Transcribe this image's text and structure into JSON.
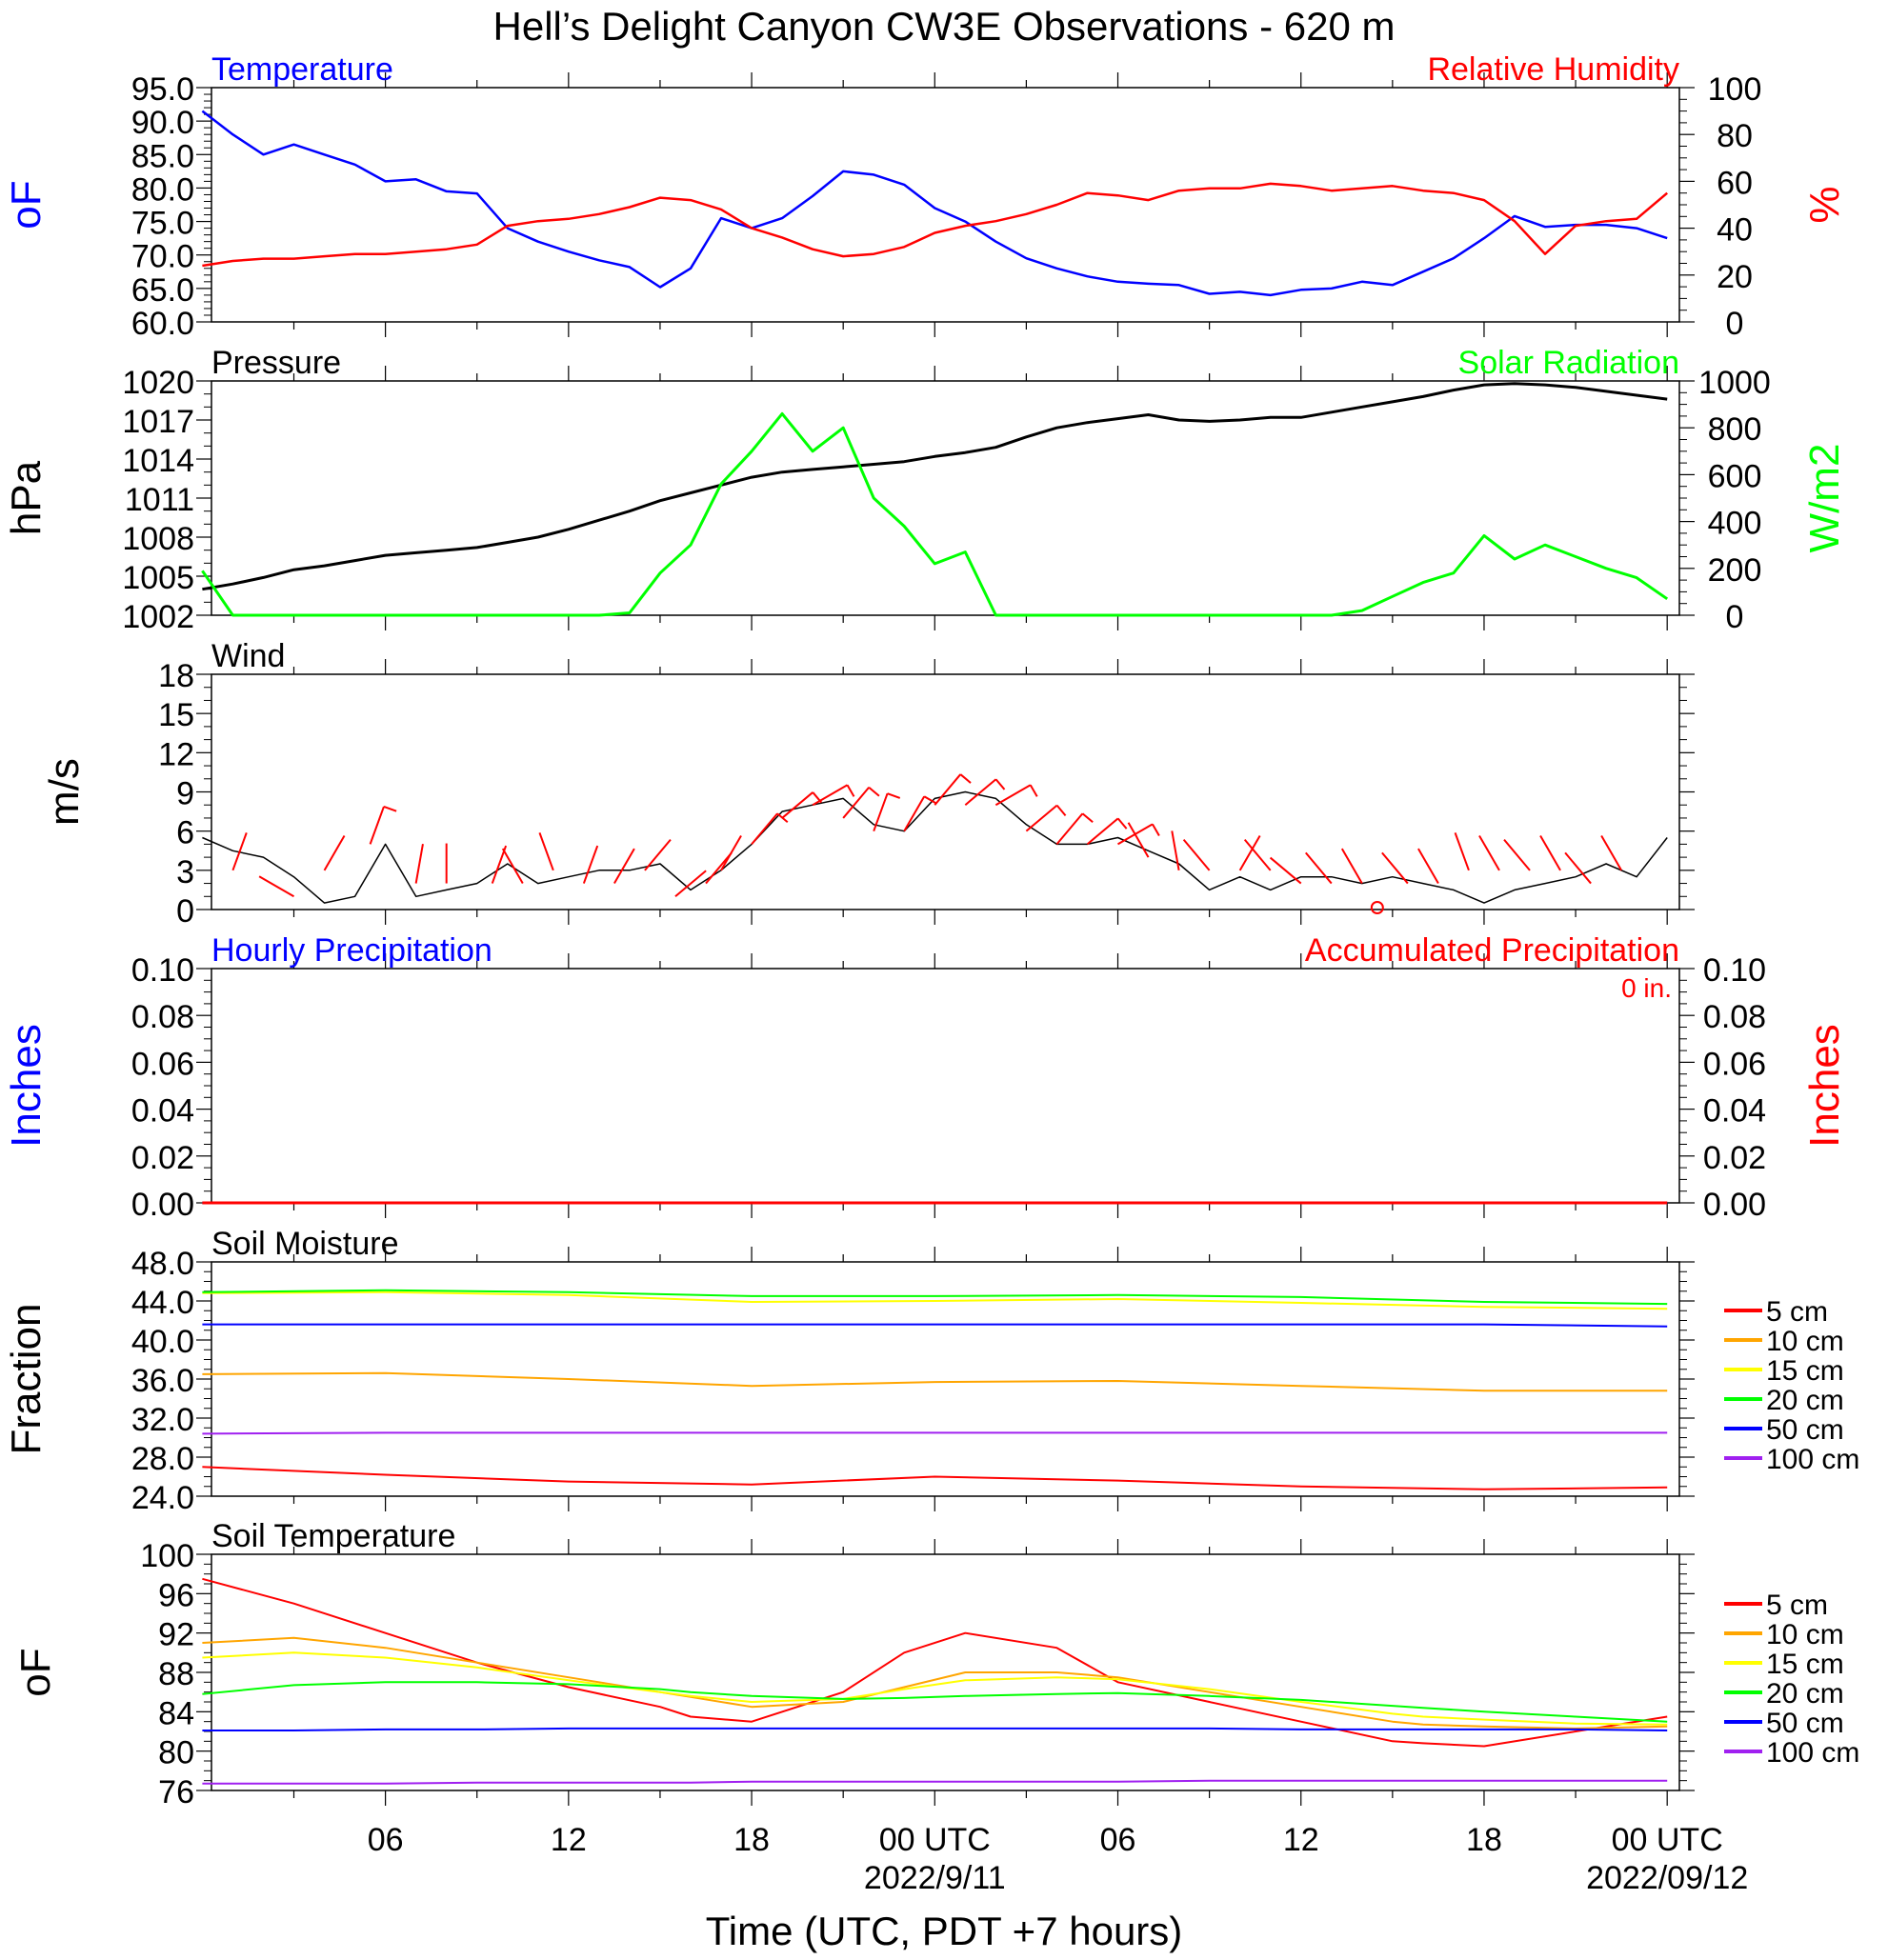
{
  "title": "Hell’s Delight Canyon CW3E Observations - 620 m",
  "x_axis": {
    "title": "Time (UTC, PDT +7 hours)",
    "tick_labels": [
      "06",
      "12",
      "18",
      "00 UTC",
      "06",
      "12",
      "18",
      "00 UTC"
    ],
    "date_labels": [
      "2022/9/11",
      "2022/09/12"
    ]
  },
  "colors": {
    "blue": "#0000ff",
    "red": "#ff0000",
    "green": "#00ff00",
    "black": "#000000",
    "orange": "#ffa500",
    "yellow": "#ffff00",
    "purple": "#a020f0"
  },
  "legend_labels": [
    "5 cm",
    "10 cm",
    "15 cm",
    "20 cm",
    "50 cm",
    "100 cm"
  ],
  "chart_data": [
    {
      "panel": "temperature_rh",
      "type": "line",
      "title_left": "Temperature",
      "title_right": "Relative Humidity",
      "ylabel_left": "oF",
      "ylabel_right": "%",
      "ylim_left": [
        60,
        95
      ],
      "ylim_right": [
        0,
        100
      ],
      "left_ticks": [
        "95.0",
        "90.0",
        "85.0",
        "80.0",
        "75.0",
        "70.0",
        "65.0",
        "60.0"
      ],
      "right_ticks": [
        "100",
        "80",
        "60",
        "40",
        "20",
        "0"
      ],
      "x_hours": [
        0,
        1,
        2,
        3,
        4,
        5,
        6,
        7,
        8,
        9,
        10,
        11,
        12,
        13,
        14,
        15,
        16,
        17,
        18,
        19,
        20,
        21,
        22,
        23,
        24,
        25,
        26,
        27,
        28,
        29,
        30,
        31,
        32,
        33,
        34,
        35,
        36,
        37,
        38,
        39,
        40,
        41,
        42,
        43,
        44,
        45,
        46,
        47,
        48
      ],
      "series": [
        {
          "name": "Temperature",
          "axis": "left",
          "color": "blue",
          "values": [
            91.5,
            88,
            85,
            86.5,
            85,
            83.5,
            81,
            81.3,
            79.5,
            79.2,
            74,
            72,
            70.5,
            69.2,
            68.2,
            65.2,
            68,
            75.5,
            74,
            75.5,
            78.8,
            82.5,
            82,
            80.5,
            77,
            75,
            72,
            69.5,
            68,
            66.8,
            66,
            65.7,
            65.5,
            64.2,
            64.5,
            64,
            64.8,
            65,
            66,
            65.5,
            67.5,
            69.5,
            72.5,
            75.8,
            74.2,
            74.5,
            74.5,
            74,
            72.5
          ]
        },
        {
          "name": "Relative Humidity",
          "axis": "right",
          "color": "red",
          "values": [
            24,
            26,
            27,
            27,
            28,
            29,
            29,
            30,
            31,
            33,
            41,
            43,
            44,
            46,
            49,
            53,
            52,
            48,
            40,
            36,
            31,
            28,
            29,
            32,
            38,
            41,
            43,
            46,
            50,
            55,
            54,
            52,
            56,
            57,
            57,
            59,
            58,
            56,
            57,
            58,
            56,
            55,
            52,
            43,
            29,
            41,
            43,
            44,
            55
          ]
        }
      ]
    },
    {
      "panel": "pressure_solar",
      "type": "line",
      "title_left": "Pressure",
      "title_right": "Solar Radiation",
      "ylabel_left": "hPa",
      "ylabel_right": "W/m2",
      "ylim_left": [
        1002,
        1020
      ],
      "ylim_right": [
        0,
        1000
      ],
      "left_ticks": [
        "1020",
        "1017",
        "1014",
        "1011",
        "1008",
        "1005",
        "1002"
      ],
      "right_ticks": [
        "1000",
        "800",
        "600",
        "400",
        "200",
        "0"
      ],
      "x_hours": [
        0,
        1,
        2,
        3,
        4,
        5,
        6,
        7,
        8,
        9,
        10,
        11,
        12,
        13,
        14,
        15,
        16,
        17,
        18,
        19,
        20,
        21,
        22,
        23,
        24,
        25,
        26,
        27,
        28,
        29,
        30,
        31,
        32,
        33,
        34,
        35,
        36,
        37,
        38,
        39,
        40,
        41,
        42,
        43,
        44,
        45,
        46,
        47,
        48
      ],
      "series": [
        {
          "name": "Pressure",
          "axis": "left",
          "color": "black",
          "values": [
            1004.0,
            1004.4,
            1004.9,
            1005.5,
            1005.8,
            1006.2,
            1006.6,
            1006.8,
            1007.0,
            1007.2,
            1007.6,
            1008.0,
            1008.6,
            1009.3,
            1010.0,
            1010.8,
            1011.4,
            1012.0,
            1012.6,
            1013.0,
            1013.2,
            1013.4,
            1013.6,
            1013.8,
            1014.2,
            1014.5,
            1014.9,
            1015.7,
            1016.4,
            1016.8,
            1017.1,
            1017.4,
            1017.0,
            1016.9,
            1017.0,
            1017.2,
            1017.2,
            1017.6,
            1018.0,
            1018.4,
            1018.8,
            1019.3,
            1019.7,
            1019.8,
            1019.7,
            1019.5,
            1019.2,
            1018.9,
            1018.6
          ]
        },
        {
          "name": "Solar Radiation",
          "axis": "right",
          "color": "green",
          "values": [
            190,
            0,
            0,
            0,
            0,
            0,
            0,
            0,
            0,
            0,
            0,
            0,
            0,
            0,
            10,
            180,
            300,
            560,
            700,
            860,
            700,
            800,
            500,
            380,
            220,
            270,
            0,
            0,
            0,
            0,
            0,
            0,
            0,
            0,
            0,
            0,
            0,
            0,
            20,
            80,
            140,
            180,
            340,
            240,
            300,
            250,
            200,
            160,
            70
          ]
        }
      ]
    },
    {
      "panel": "wind",
      "type": "line",
      "title_left": "Wind",
      "ylabel_left": "m/s",
      "ylim_left": [
        0,
        18
      ],
      "left_ticks": [
        "18",
        "15",
        "12",
        "9",
        "6",
        "3",
        "0"
      ],
      "x_hours": [
        0,
        1,
        2,
        3,
        4,
        5,
        6,
        7,
        8,
        9,
        10,
        11,
        12,
        13,
        14,
        15,
        16,
        17,
        18,
        19,
        20,
        21,
        22,
        23,
        24,
        25,
        26,
        27,
        28,
        29,
        30,
        31,
        32,
        33,
        34,
        35,
        36,
        37,
        38,
        39,
        40,
        41,
        42,
        43,
        44,
        45,
        46,
        47,
        48
      ],
      "series": [
        {
          "name": "Wind speed",
          "axis": "left",
          "color": "black",
          "values": [
            5.5,
            4.5,
            4.0,
            2.5,
            0.5,
            1.0,
            5.0,
            1.0,
            1.5,
            2.0,
            3.5,
            2.0,
            2.5,
            3.0,
            3.0,
            3.5,
            1.5,
            3.0,
            5.0,
            7.5,
            8.0,
            8.5,
            6.5,
            6.0,
            8.5,
            9.0,
            8.5,
            6.5,
            5.0,
            5.0,
            5.5,
            4.5,
            3.5,
            1.5,
            2.5,
            1.5,
            2.5,
            2.5,
            2.0,
            2.5,
            2.0,
            1.5,
            0.5,
            1.5,
            2.0,
            2.5,
            3.5,
            2.5,
            5.5
          ]
        }
      ],
      "barbs": {
        "color": "red",
        "x_hours": [
          1,
          3,
          4,
          5.5,
          7,
          8,
          9.5,
          10.5,
          11.5,
          12.5,
          13.5,
          14.5,
          15.5,
          16.5,
          17,
          18,
          19,
          20,
          21,
          22,
          23,
          24,
          25,
          26,
          27,
          28,
          29,
          30,
          31,
          32,
          33,
          34,
          35,
          36,
          37,
          38,
          38.5,
          39.5,
          40.5,
          41.5,
          42.5,
          43.5,
          44.5,
          45.5,
          46.5
        ],
        "speeds": [
          3,
          1,
          3,
          5,
          2,
          2,
          2,
          2,
          3,
          2,
          2,
          3,
          1,
          2,
          3,
          5,
          7,
          8,
          7,
          6,
          6,
          8,
          8,
          8,
          6,
          5,
          5,
          5,
          4,
          3,
          3,
          3,
          3,
          2,
          2,
          2,
          0,
          2,
          2,
          3,
          3,
          3,
          3,
          2,
          3
        ],
        "angles": [
          20,
          300,
          30,
          20,
          10,
          0,
          20,
          330,
          340,
          20,
          30,
          40,
          50,
          40,
          30,
          40,
          50,
          60,
          40,
          20,
          30,
          40,
          50,
          60,
          50,
          40,
          50,
          60,
          330,
          350,
          320,
          30,
          320,
          310,
          320,
          330,
          0,
          320,
          330,
          340,
          330,
          320,
          330,
          320,
          330
        ]
      }
    },
    {
      "panel": "precipitation",
      "type": "line",
      "title_left": "Hourly Precipitation",
      "title_right": "Accumulated Precipitation",
      "annotation": "0 in.",
      "ylabel_left": "Inches",
      "ylabel_right": "Inches",
      "ylim_left": [
        0,
        0.1
      ],
      "ylim_right": [
        0,
        0.1
      ],
      "left_ticks": [
        "0.10",
        "0.08",
        "0.06",
        "0.04",
        "0.02",
        "0.00"
      ],
      "right_ticks": [
        "0.10",
        "0.08",
        "0.06",
        "0.04",
        "0.02",
        "0.00"
      ],
      "x_hours": [
        0,
        48
      ],
      "series": [
        {
          "name": "Hourly Precipitation",
          "axis": "left",
          "color": "blue",
          "values": [
            0,
            0
          ]
        },
        {
          "name": "Accumulated Precipitation",
          "axis": "right",
          "color": "red",
          "values": [
            0,
            0
          ]
        }
      ]
    },
    {
      "panel": "soil_moisture",
      "type": "line",
      "title_left": "Soil Moisture",
      "ylabel_left": "Fraction",
      "ylim_left": [
        24,
        48
      ],
      "left_ticks": [
        "48.0",
        "44.0",
        "40.0",
        "36.0",
        "32.0",
        "28.0",
        "24.0"
      ],
      "x_hours": [
        0,
        6,
        12,
        18,
        24,
        30,
        36,
        42,
        48
      ],
      "series": [
        {
          "name": "5 cm",
          "color": "red",
          "values": [
            27.0,
            26.2,
            25.5,
            25.2,
            26.0,
            25.6,
            25.0,
            24.7,
            24.9
          ]
        },
        {
          "name": "10 cm",
          "color": "orange",
          "values": [
            36.5,
            36.6,
            36.0,
            35.3,
            35.7,
            35.8,
            35.3,
            34.8,
            34.8
          ]
        },
        {
          "name": "15 cm",
          "color": "yellow",
          "values": [
            44.8,
            44.9,
            44.6,
            43.9,
            44.0,
            44.2,
            43.8,
            43.4,
            43.2
          ]
        },
        {
          "name": "20 cm",
          "color": "green",
          "values": [
            44.9,
            45.1,
            44.9,
            44.5,
            44.5,
            44.6,
            44.4,
            43.9,
            43.7
          ]
        },
        {
          "name": "50 cm",
          "color": "blue",
          "values": [
            41.6,
            41.6,
            41.6,
            41.6,
            41.6,
            41.6,
            41.6,
            41.6,
            41.4
          ]
        },
        {
          "name": "100 cm",
          "color": "purple",
          "values": [
            30.4,
            30.5,
            30.5,
            30.5,
            30.5,
            30.5,
            30.5,
            30.5,
            30.5
          ]
        }
      ]
    },
    {
      "panel": "soil_temperature",
      "type": "line",
      "title_left": "Soil Temperature",
      "ylabel_left": "oF",
      "ylim_left": [
        76,
        100
      ],
      "left_ticks": [
        "100",
        "96",
        "92",
        "88",
        "84",
        "80",
        "76"
      ],
      "x_hours": [
        0,
        3,
        6,
        9,
        12,
        15,
        16,
        18,
        21,
        23,
        25,
        28,
        30,
        33,
        36,
        39,
        40,
        42,
        45,
        48
      ],
      "series": [
        {
          "name": "5 cm",
          "color": "red",
          "values": [
            97.5,
            95.0,
            92.0,
            89.0,
            86.5,
            84.5,
            83.5,
            83.0,
            86.0,
            90.0,
            92.0,
            90.5,
            87.0,
            85.0,
            83.0,
            81.0,
            80.8,
            80.5,
            82.0,
            83.5
          ]
        },
        {
          "name": "10 cm",
          "color": "orange",
          "values": [
            91.0,
            91.5,
            90.5,
            89.0,
            87.5,
            86.0,
            85.5,
            84.5,
            85.0,
            86.5,
            88.0,
            88.0,
            87.5,
            86.0,
            84.5,
            83.0,
            82.7,
            82.5,
            82.3,
            82.5
          ]
        },
        {
          "name": "15 cm",
          "color": "yellow",
          "values": [
            89.5,
            90.0,
            89.5,
            88.5,
            87.2,
            86.0,
            85.6,
            85.0,
            85.3,
            86.3,
            87.2,
            87.5,
            87.3,
            86.3,
            85.0,
            83.8,
            83.5,
            83.2,
            82.8,
            82.7
          ]
        },
        {
          "name": "20 cm",
          "color": "green",
          "values": [
            85.8,
            86.7,
            87.0,
            87.0,
            86.8,
            86.3,
            86.0,
            85.6,
            85.3,
            85.4,
            85.6,
            85.8,
            85.9,
            85.6,
            85.2,
            84.6,
            84.4,
            84.0,
            83.5,
            83.0
          ]
        },
        {
          "name": "50 cm",
          "color": "blue",
          "values": [
            82.1,
            82.1,
            82.2,
            82.2,
            82.3,
            82.3,
            82.3,
            82.3,
            82.3,
            82.3,
            82.3,
            82.3,
            82.3,
            82.3,
            82.2,
            82.2,
            82.2,
            82.2,
            82.2,
            82.1
          ]
        },
        {
          "name": "100 cm",
          "color": "purple",
          "values": [
            76.7,
            76.7,
            76.7,
            76.8,
            76.8,
            76.8,
            76.8,
            76.9,
            76.9,
            76.9,
            76.9,
            76.9,
            76.9,
            77.0,
            77.0,
            77.0,
            77.0,
            77.0,
            77.0,
            77.0
          ]
        }
      ]
    }
  ]
}
